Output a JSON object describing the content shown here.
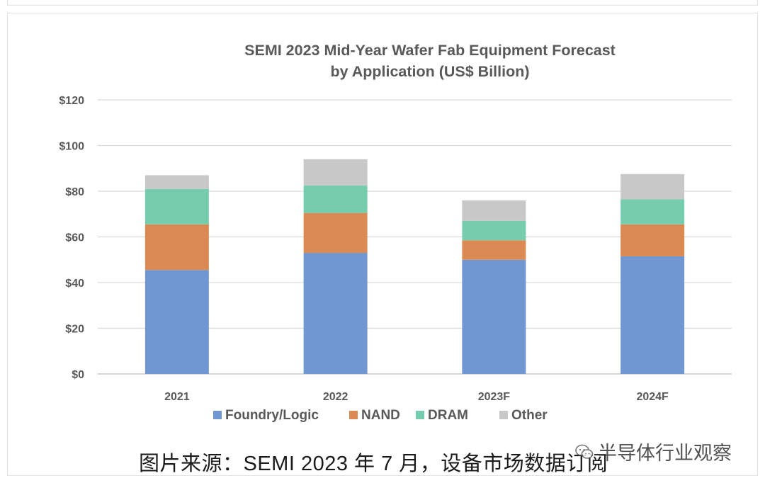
{
  "chart_data": {
    "type": "bar",
    "stacked": true,
    "title": [
      "SEMI 2023 Mid-Year Wafer Fab Equipment Forecast",
      "by Application (US$ Billion)"
    ],
    "xlabel": "",
    "ylabel": "",
    "ylim": [
      0,
      120
    ],
    "yticks": [
      0,
      20,
      40,
      60,
      80,
      100,
      120
    ],
    "ytick_labels": [
      "$0",
      "$20",
      "$40",
      "$60",
      "$80",
      "$100",
      "$120"
    ],
    "grid": true,
    "legend_position": "bottom",
    "categories": [
      "2021",
      "2022",
      "2023F",
      "2024F"
    ],
    "series": [
      {
        "name": "Foundry/Logic",
        "color": "#7097d1",
        "values": [
          45.5,
          53,
          50,
          51.5
        ]
      },
      {
        "name": "NAND",
        "color": "#dc8a53",
        "values": [
          20,
          17.5,
          8.5,
          14
        ]
      },
      {
        "name": "DRAM",
        "color": "#75cdae",
        "values": [
          15.5,
          12,
          8.5,
          11
        ]
      },
      {
        "name": "Other",
        "color": "#c8c8c8",
        "values": [
          6,
          11.5,
          9,
          11
        ]
      }
    ]
  },
  "caption": {
    "text": "图片来源：SEMI 2023 年 7 月，设备市场数据订阅"
  },
  "watermark": {
    "text": "半导体行业观察",
    "icon": "wechat-icon"
  }
}
